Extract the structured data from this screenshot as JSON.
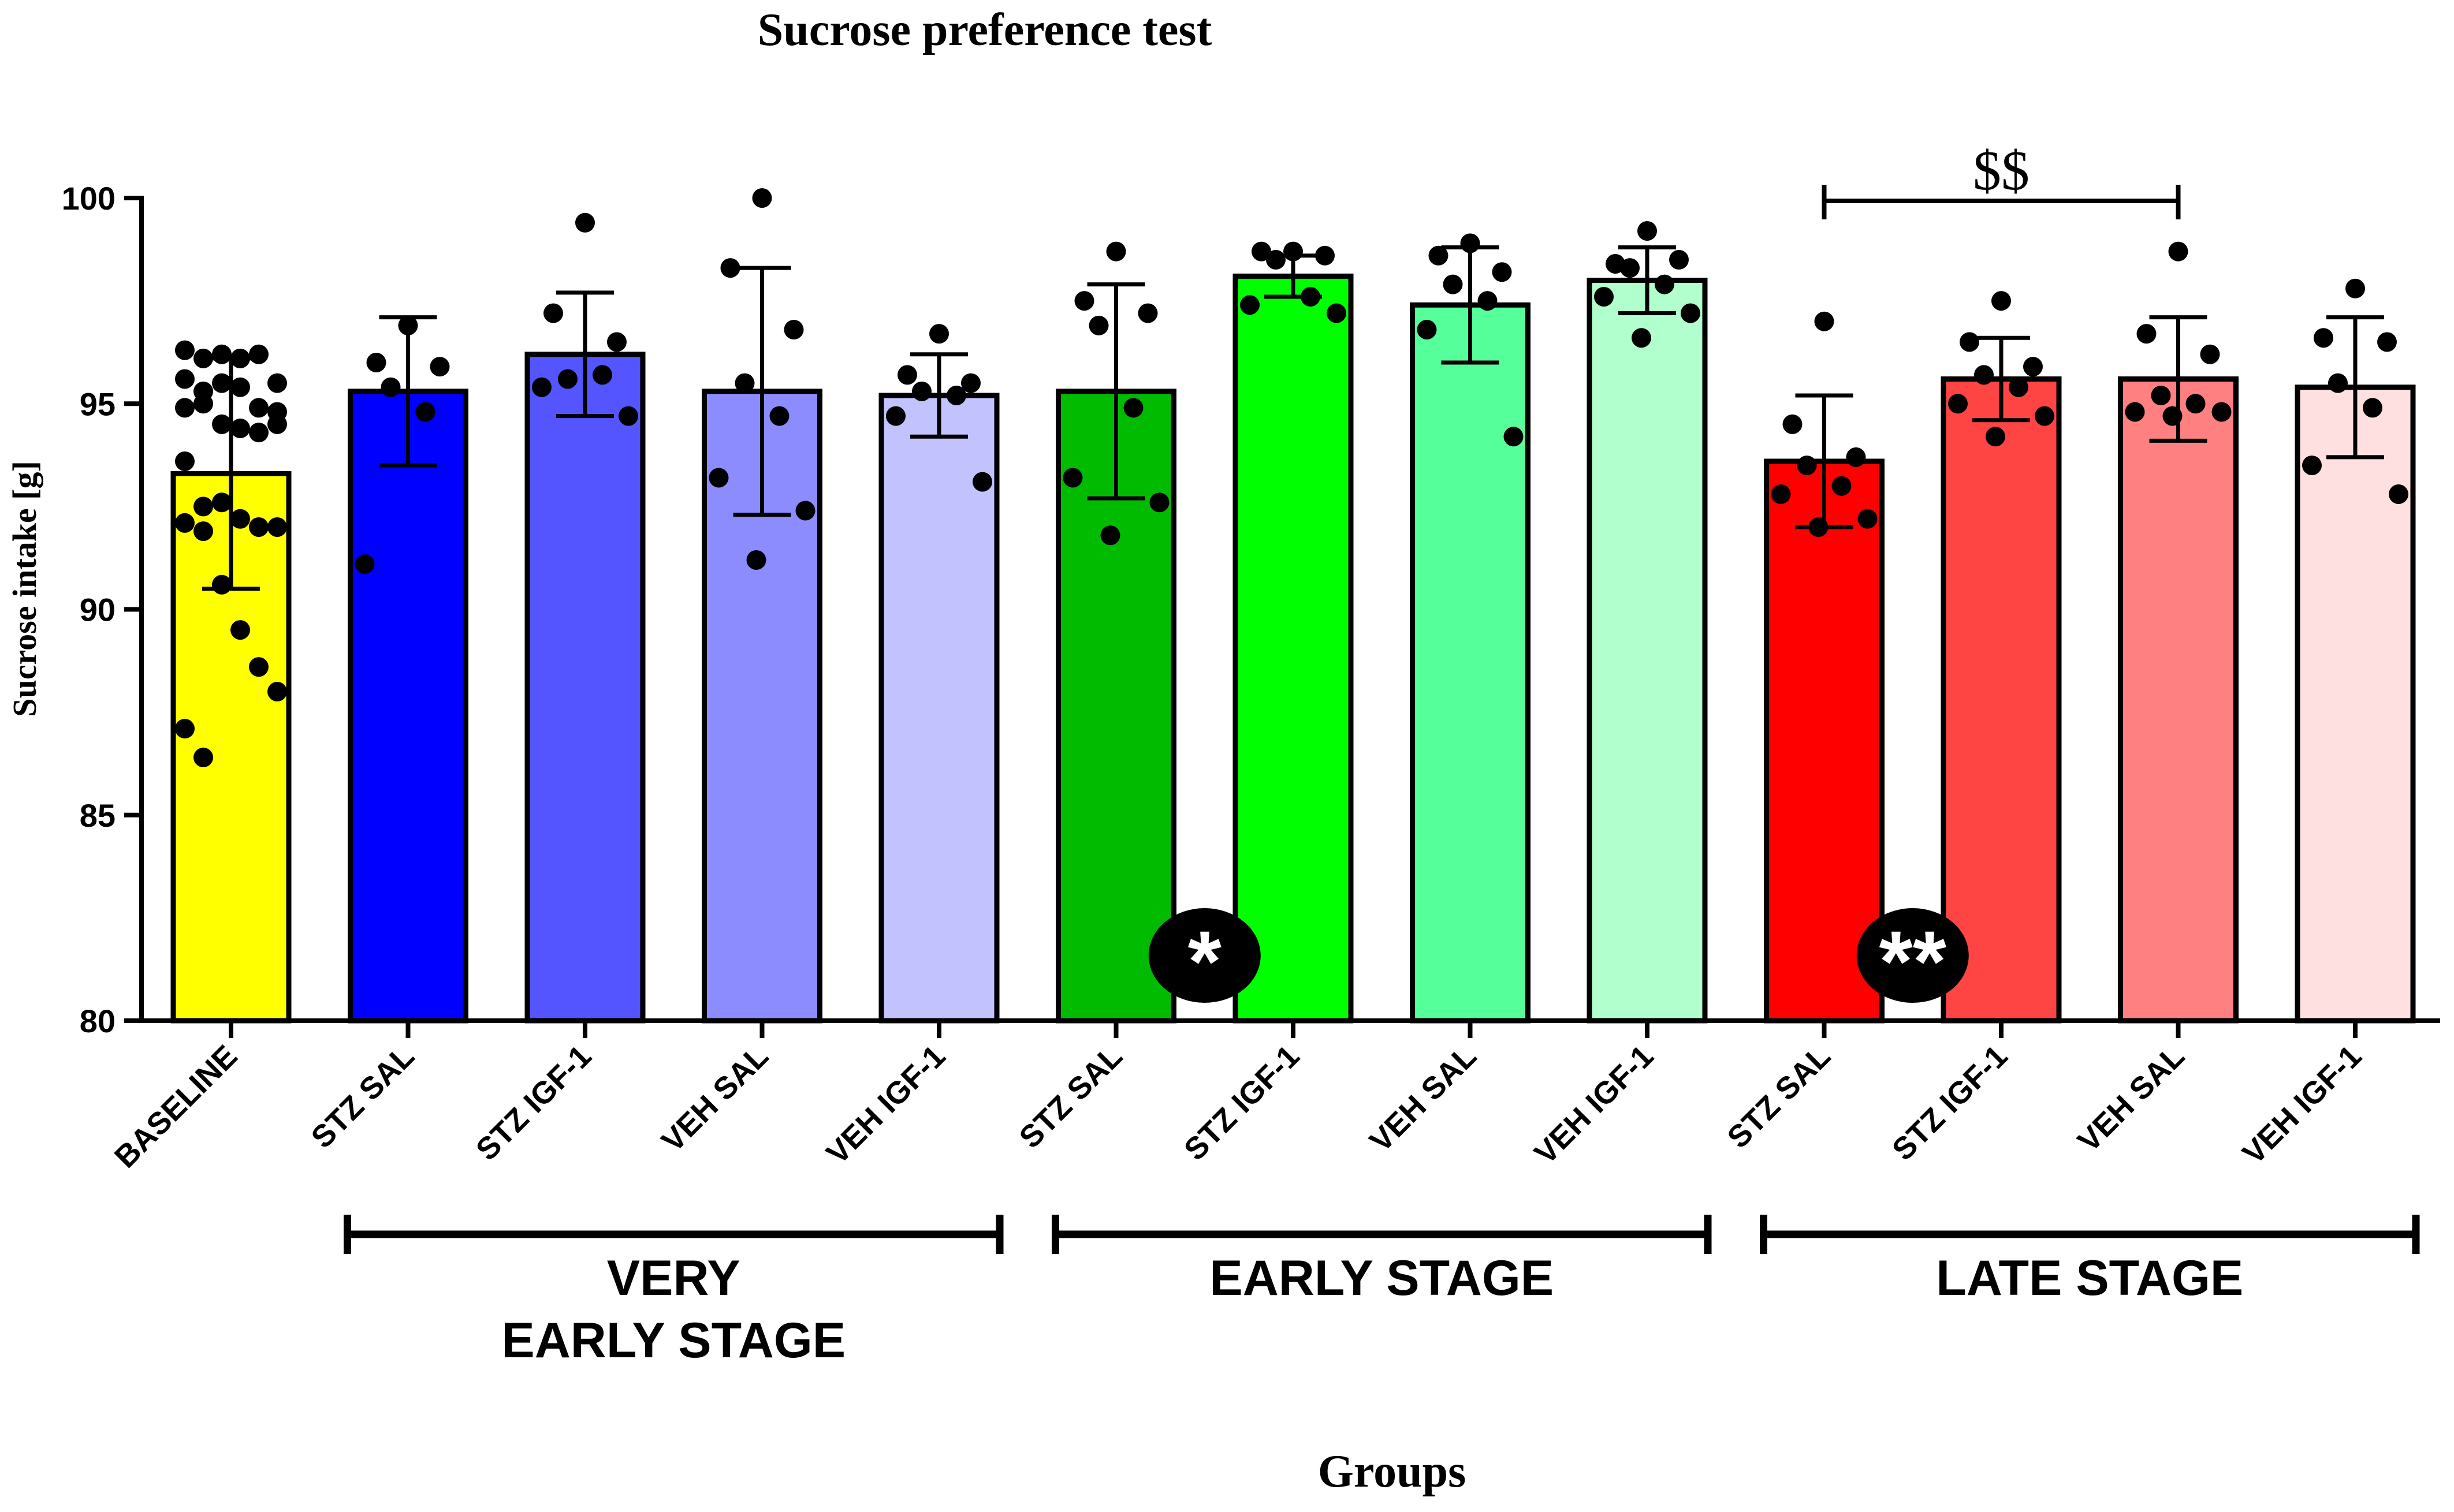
{
  "chart_data": {
    "type": "bar",
    "title": "Sucrose preference test",
    "xlabel": "Groups",
    "ylabel": "Sucrose intake [g]",
    "ylim": [
      80,
      100
    ],
    "yticks": [
      80,
      85,
      90,
      95,
      100
    ],
    "categories": [
      "BASELINE",
      "STZ SAL",
      "STZ IGF-1",
      "VEH SAL",
      "VEH IGF-1",
      "STZ SAL",
      "STZ IGF-1",
      "VEH SAL",
      "VEH IGF-1",
      "STZ SAL",
      "STZ IGF-1",
      "VEH SAL",
      "VEH IGF-1"
    ],
    "colors": [
      "#ffff00",
      "#0000ff",
      "#5555ff",
      "#8c8cff",
      "#c2c2ff",
      "#00bb00",
      "#00ff00",
      "#55ff99",
      "#b0ffcc",
      "#ff0000",
      "#ff4444",
      "#ff8080",
      "#ffe0e0"
    ],
    "means": [
      93.3,
      95.3,
      96.2,
      95.3,
      95.2,
      95.3,
      98.1,
      97.4,
      98.0,
      93.6,
      95.6,
      95.6,
      95.4
    ],
    "sd": [
      2.8,
      1.8,
      1.5,
      3.0,
      1.0,
      2.6,
      0.5,
      1.4,
      0.8,
      1.6,
      1.0,
      1.5,
      1.7
    ],
    "points": [
      [
        96.3,
        96.1,
        96.2,
        96.1,
        96.2,
        95.5,
        95.6,
        95.3,
        95.5,
        95.4,
        94.9,
        94.8,
        94.9,
        95.0,
        94.5,
        94.4,
        94.3,
        94.5,
        93.6,
        92.5,
        92.6,
        92.2,
        92.0,
        92.0,
        92.1,
        91.9,
        90.6,
        89.5,
        88.6,
        88.0,
        87.1,
        86.4
      ],
      [
        96.9,
        96.0,
        95.9,
        95.4,
        94.8,
        91.1
      ],
      [
        99.4,
        97.2,
        96.5,
        95.6,
        95.7,
        95.4,
        94.7
      ],
      [
        100.0,
        98.3,
        96.8,
        95.5,
        94.7,
        93.2,
        92.4,
        91.2
      ],
      [
        96.7,
        95.7,
        95.5,
        95.3,
        95.2,
        94.7,
        93.1
      ],
      [
        98.7,
        97.5,
        97.2,
        96.9,
        94.9,
        93.2,
        92.6,
        91.8
      ],
      [
        98.7,
        98.7,
        98.6,
        98.5,
        97.6,
        97.4,
        97.2
      ],
      [
        98.9,
        98.6,
        98.2,
        97.9,
        97.5,
        96.8,
        94.2
      ],
      [
        99.2,
        98.4,
        98.5,
        98.3,
        97.9,
        97.6,
        97.2,
        96.6
      ],
      [
        97.0,
        94.5,
        93.7,
        93.5,
        93.0,
        92.8,
        92.2,
        92.0
      ],
      [
        97.5,
        96.5,
        95.9,
        95.7,
        95.4,
        95.0,
        94.7,
        94.2
      ],
      [
        98.7,
        96.7,
        96.2,
        95.2,
        95.0,
        94.8,
        94.8,
        94.7
      ],
      [
        97.8,
        96.6,
        96.5,
        95.5,
        94.9,
        93.5,
        92.8
      ]
    ],
    "groups": [
      {
        "label_lines": [
          "VERY",
          "EARLY STAGE"
        ],
        "start": 1,
        "end": 4
      },
      {
        "label_lines": [
          "EARLY STAGE"
        ],
        "start": 5,
        "end": 8
      },
      {
        "label_lines": [
          "LATE STAGE"
        ],
        "start": 9,
        "end": 12
      }
    ],
    "annotations": [
      {
        "text": "*",
        "near_bar": 5,
        "side": "right",
        "style": "black-ellipse"
      },
      {
        "text": "**",
        "near_bar": 9,
        "side": "right",
        "style": "black-ellipse"
      },
      {
        "text": "$$",
        "from_bar": 9,
        "to_bar": 11,
        "at_value": 100.0,
        "style": "bracket"
      }
    ]
  }
}
